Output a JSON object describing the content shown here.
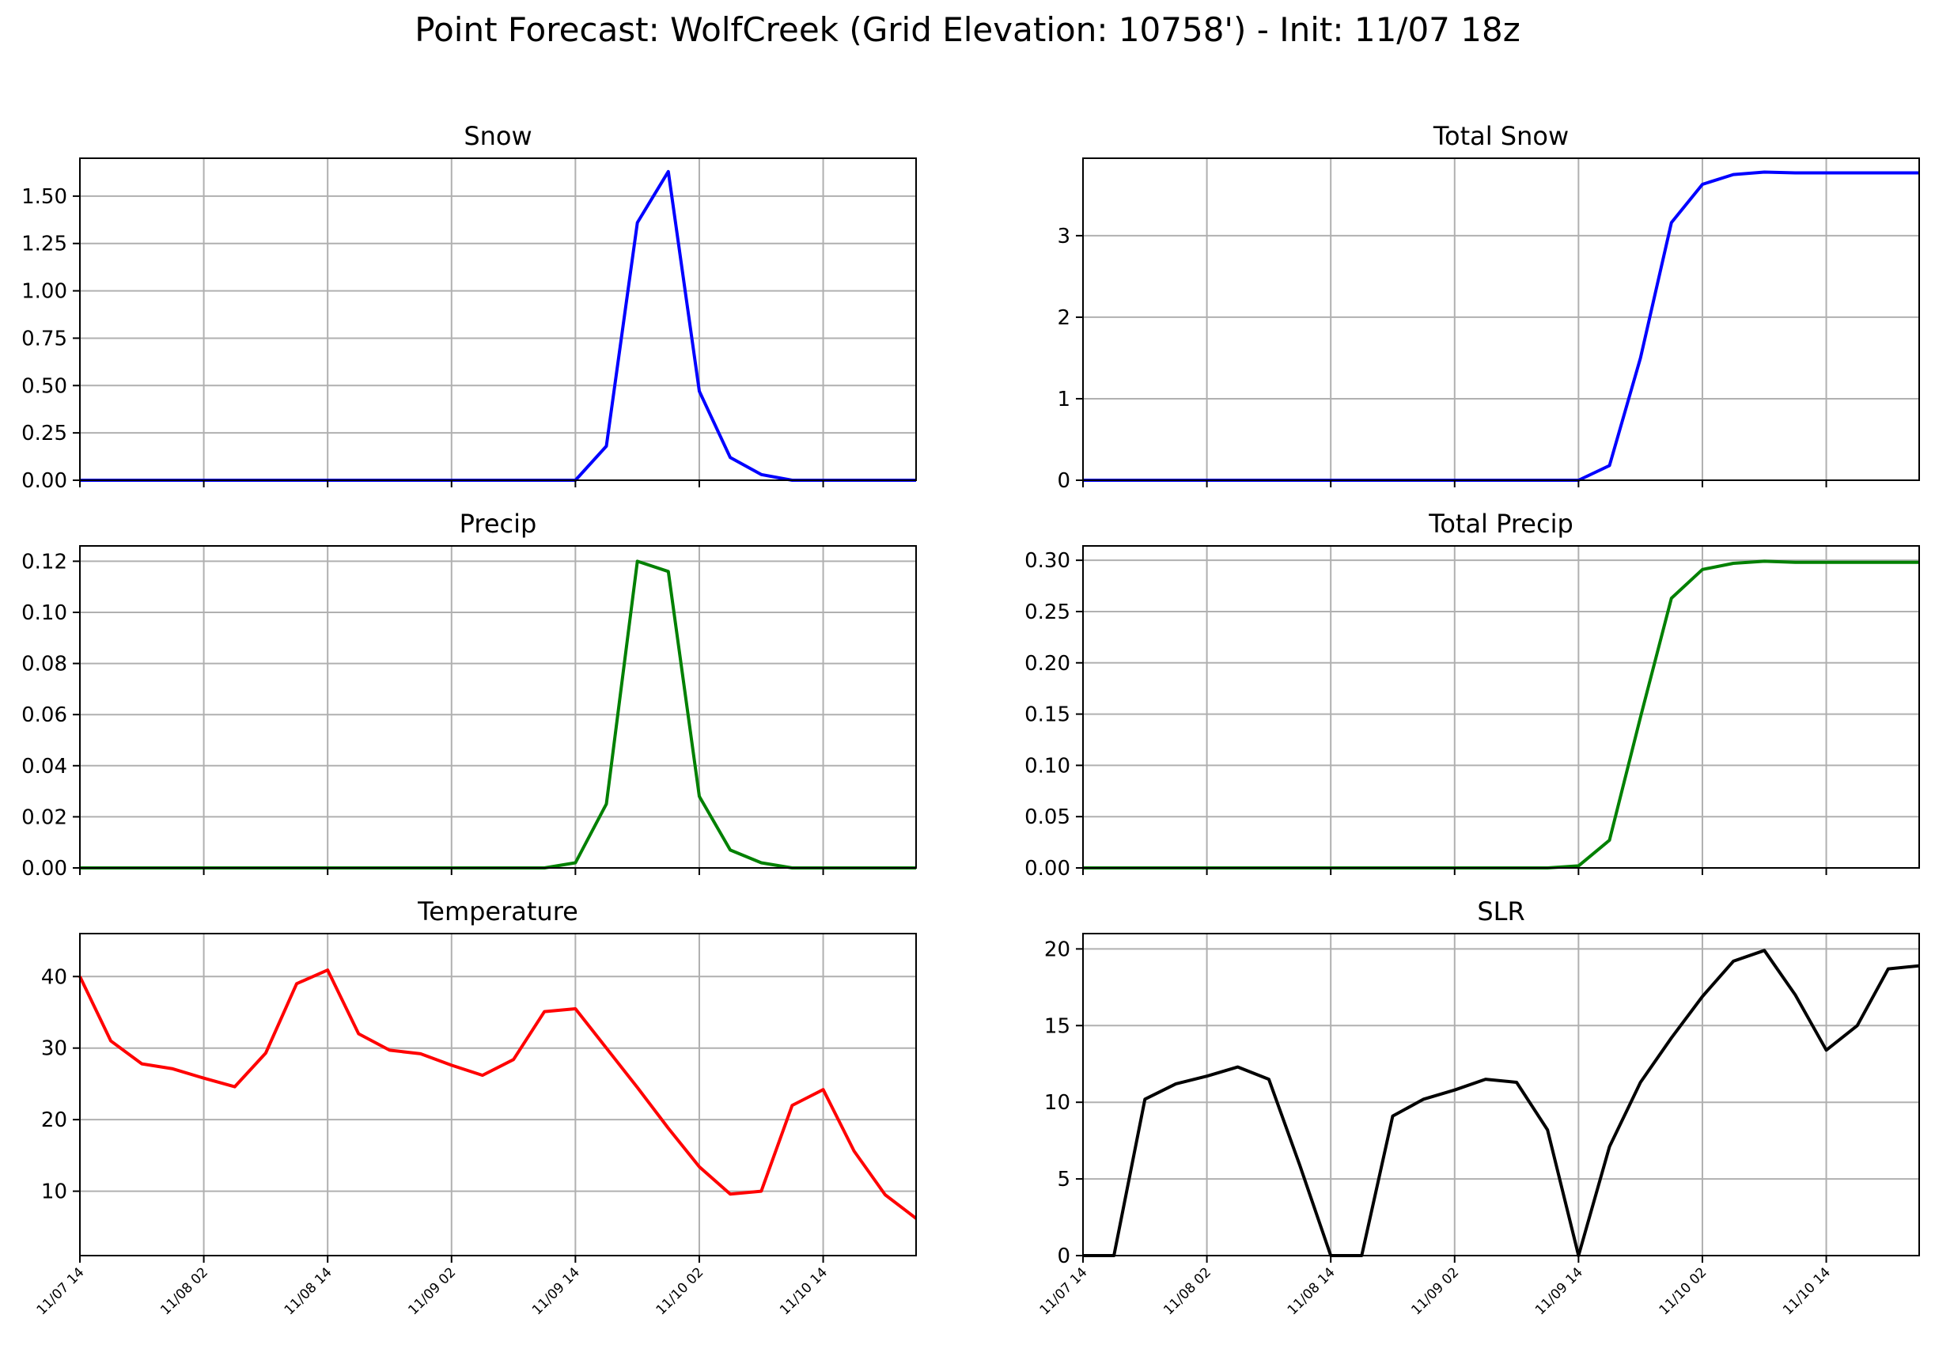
{
  "suptitle": "Point Forecast: WolfCreek (Grid Elevation: 10758') - Init: 11/07 18z",
  "x_tick_labels": [
    "11/07 14",
    "11/08 02",
    "11/08 14",
    "11/09 02",
    "11/09 14",
    "11/10 02",
    "11/10 14"
  ],
  "chart_data": [
    {
      "type": "line",
      "title": "Snow",
      "color": "#0000ff",
      "ylim": [
        0,
        1.7
      ],
      "yticks": [
        "0.00",
        "0.25",
        "0.50",
        "0.75",
        "1.00",
        "1.25",
        "1.50"
      ],
      "ytick_values": [
        0,
        0.25,
        0.5,
        0.75,
        1.0,
        1.25,
        1.5
      ],
      "x_hours": [
        0,
        3,
        6,
        9,
        12,
        15,
        18,
        21,
        24,
        27,
        30,
        33,
        36,
        39,
        42,
        45,
        48,
        51,
        54,
        57,
        60,
        63,
        66,
        69,
        72,
        75,
        78,
        81
      ],
      "values": [
        0,
        0,
        0,
        0,
        0,
        0,
        0,
        0,
        0,
        0,
        0,
        0,
        0,
        0,
        0,
        0,
        0,
        0.18,
        1.36,
        1.63,
        0.47,
        0.12,
        0.03,
        0,
        0,
        0,
        0,
        0
      ]
    },
    {
      "type": "line",
      "title": "Total Snow",
      "color": "#0000ff",
      "ylim": [
        0,
        3.95
      ],
      "yticks": [
        "0",
        "1",
        "2",
        "3"
      ],
      "ytick_values": [
        0,
        1,
        2,
        3
      ],
      "x_hours": [
        48,
        51,
        54,
        57,
        60,
        63,
        66,
        69,
        72,
        75,
        78,
        81
      ],
      "lead_flat_from": 0,
      "values": [
        0,
        0.18,
        1.5,
        3.16,
        3.63,
        3.75,
        3.78,
        3.77,
        3.77,
        3.77,
        3.77,
        3.77
      ]
    },
    {
      "type": "line",
      "title": "Precip",
      "color": "#008000",
      "ylim": [
        0,
        0.126
      ],
      "yticks": [
        "0.00",
        "0.02",
        "0.04",
        "0.06",
        "0.08",
        "0.10",
        "0.12"
      ],
      "ytick_values": [
        0,
        0.02,
        0.04,
        0.06,
        0.08,
        0.1,
        0.12
      ],
      "x_hours": [
        0,
        3,
        6,
        9,
        12,
        15,
        18,
        21,
        24,
        27,
        30,
        33,
        36,
        39,
        42,
        45,
        48,
        51,
        54,
        57,
        60,
        63,
        66,
        69,
        72,
        75,
        78,
        81
      ],
      "values": [
        0,
        0,
        0,
        0,
        0,
        0,
        0,
        0,
        0,
        0,
        0,
        0,
        0,
        0,
        0,
        0,
        0.002,
        0.025,
        0.12,
        0.116,
        0.028,
        0.007,
        0.002,
        0,
        0,
        0,
        0,
        0
      ]
    },
    {
      "type": "line",
      "title": "Total Precip",
      "color": "#008000",
      "ylim": [
        0,
        0.314
      ],
      "yticks": [
        "0.00",
        "0.05",
        "0.10",
        "0.15",
        "0.20",
        "0.25",
        "0.30"
      ],
      "ytick_values": [
        0,
        0.05,
        0.1,
        0.15,
        0.2,
        0.25,
        0.3
      ],
      "x_hours": [
        0,
        3,
        6,
        9,
        12,
        15,
        18,
        21,
        24,
        27,
        30,
        33,
        36,
        39,
        42,
        45,
        48,
        51,
        54,
        57,
        60,
        63,
        66,
        69,
        72,
        75,
        78,
        81
      ],
      "values": [
        0,
        0,
        0,
        0,
        0,
        0,
        0,
        0,
        0,
        0,
        0,
        0,
        0,
        0,
        0,
        0,
        0.002,
        0.027,
        0.147,
        0.263,
        0.291,
        0.297,
        0.299,
        0.298,
        0.298,
        0.298,
        0.298,
        0.298
      ]
    },
    {
      "type": "line",
      "title": "Temperature",
      "color": "#ff0000",
      "ylim": [
        1,
        46
      ],
      "yticks": [
        "10",
        "20",
        "30",
        "40"
      ],
      "ytick_values": [
        10,
        20,
        30,
        40
      ],
      "x_hours": [
        0,
        3,
        6,
        9,
        12,
        15,
        18,
        21,
        24,
        27,
        30,
        33,
        36,
        39,
        42,
        45,
        48,
        51,
        54,
        57,
        60,
        63,
        66,
        69,
        72,
        75,
        78,
        81
      ],
      "values": [
        40,
        31,
        27.8,
        27.1,
        25.8,
        24.6,
        29.3,
        39,
        40.9,
        32,
        29.7,
        29.2,
        27.6,
        26.2,
        28.4,
        35.1,
        35.5,
        30,
        24.5,
        18.8,
        13.4,
        9.6,
        10,
        22,
        24.2,
        15.6,
        9.5,
        6.2
      ]
    },
    {
      "type": "line",
      "title": "SLR",
      "color": "#000000",
      "ylim": [
        0,
        21
      ],
      "yticks": [
        "0",
        "5",
        "10",
        "15",
        "20"
      ],
      "ytick_values": [
        0,
        5,
        10,
        15,
        20
      ],
      "x_hours": [
        0,
        3,
        6,
        9,
        12,
        15,
        18,
        21,
        24,
        27,
        30,
        33,
        36,
        39,
        42,
        45,
        48,
        51,
        54,
        57,
        60,
        63,
        66,
        69,
        72,
        75,
        78,
        81
      ],
      "values": [
        0,
        0,
        10.2,
        11.2,
        11.7,
        12.3,
        11.5,
        5.9,
        0,
        0,
        9.1,
        10.2,
        10.8,
        11.5,
        11.3,
        8.2,
        0,
        7.1,
        11.3,
        14.2,
        16.9,
        19.2,
        19.9,
        17,
        13.4,
        15,
        18.7,
        18.9
      ]
    }
  ]
}
